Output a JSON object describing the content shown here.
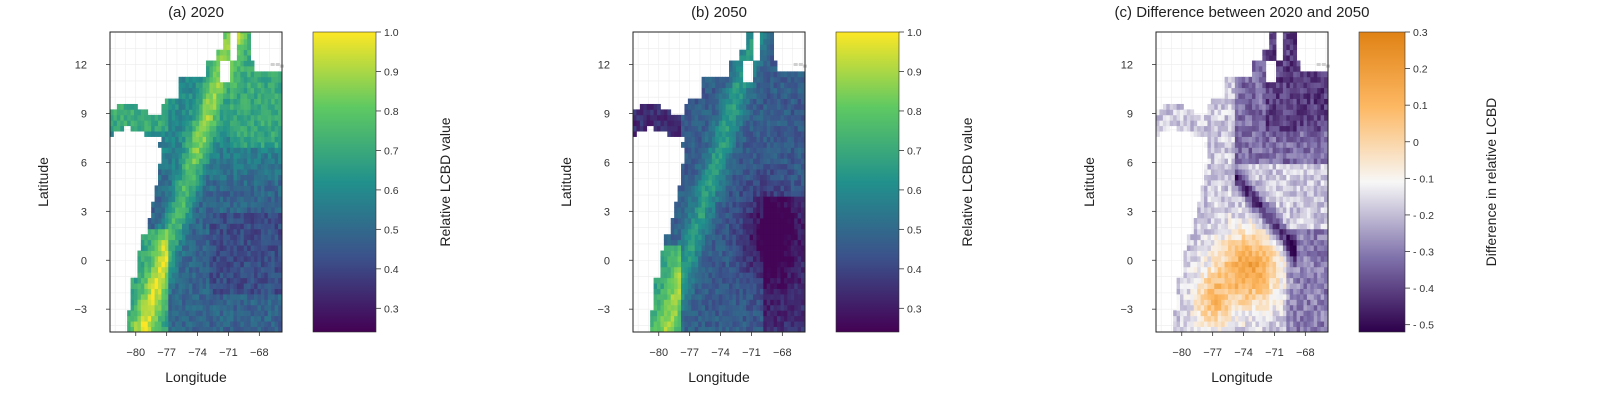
{
  "chart_data": [
    {
      "type": "heatmap",
      "title": "(a) 2020",
      "xlabel": "Longitude",
      "ylabel": "Latitude",
      "x_ticks": [
        -80,
        -77,
        -74,
        -71,
        -68
      ],
      "y_ticks": [
        12,
        9,
        6,
        3,
        0,
        -3
      ],
      "xlim": [
        -82.5,
        -65.8
      ],
      "ylim": [
        -4.4,
        14
      ],
      "colorbar": {
        "label": "Relative LCBD value",
        "ticks": [
          1.0,
          0.9,
          0.8,
          0.7,
          0.6,
          0.5,
          0.4,
          0.3
        ],
        "tick_labels": [
          "1.0",
          "0.9",
          "0.8",
          "0.7",
          "0.6",
          "0.5",
          "0.4",
          "0.3"
        ],
        "range": [
          0.24,
          1.0
        ],
        "colormap": "viridis",
        "colors": [
          "#440154",
          "#3b528b",
          "#21918c",
          "#5ec962",
          "#fde725"
        ]
      },
      "grid": true
    },
    {
      "type": "heatmap",
      "title": "(b) 2050",
      "xlabel": "Longitude",
      "ylabel": "Latitude",
      "x_ticks": [
        -80,
        -77,
        -74,
        -71,
        -68
      ],
      "y_ticks": [
        12,
        9,
        6,
        3,
        0,
        -3
      ],
      "xlim": [
        -82.5,
        -65.8
      ],
      "ylim": [
        -4.4,
        14
      ],
      "colorbar": {
        "label": "Relative LCBD value",
        "ticks": [
          1.0,
          0.9,
          0.8,
          0.7,
          0.6,
          0.5,
          0.4,
          0.3
        ],
        "tick_labels": [
          "1.0",
          "0.9",
          "0.8",
          "0.7",
          "0.6",
          "0.5",
          "0.4",
          "0.3"
        ],
        "range": [
          0.24,
          1.0
        ],
        "colormap": "viridis",
        "colors": [
          "#440154",
          "#3b528b",
          "#21918c",
          "#5ec962",
          "#fde725"
        ]
      },
      "grid": true
    },
    {
      "type": "heatmap",
      "title": "(c) Difference between 2020 and 2050",
      "xlabel": "Longitude",
      "ylabel": "Latitude",
      "x_ticks": [
        -80,
        -77,
        -74,
        -71,
        -68
      ],
      "y_ticks": [
        12,
        9,
        6,
        3,
        0,
        -3
      ],
      "xlim": [
        -82.5,
        -65.8
      ],
      "ylim": [
        -4.4,
        14
      ],
      "colorbar": {
        "label": "Difference in relative LCBD",
        "ticks": [
          0.3,
          0.2,
          0.1,
          0,
          -0.1,
          -0.2,
          -0.3,
          -0.4,
          -0.5
        ],
        "tick_labels": [
          "0.3",
          "0.2",
          "0.1",
          "0",
          "- 0.1",
          "- 0.2",
          "- 0.3",
          "- 0.4",
          "- 0.5"
        ],
        "range": [
          -0.52,
          0.3
        ],
        "colormap": "diverging purple-orange",
        "colors": [
          "#2d004b",
          "#8073ac",
          "#f7f7f7",
          "#fdb863",
          "#e08214"
        ]
      },
      "grid": true
    }
  ]
}
